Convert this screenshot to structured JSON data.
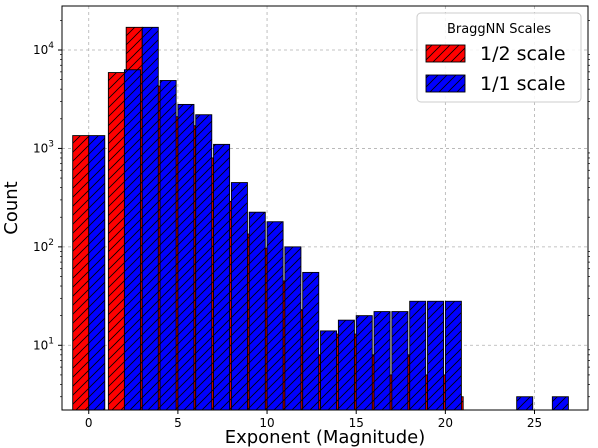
{
  "chart_data": {
    "type": "bar",
    "xlabel": "Exponent (Magnitude)",
    "ylabel": "Count",
    "yscale": "log",
    "xlim": [
      -1.5,
      28
    ],
    "ylim": [
      2.2,
      28000
    ],
    "xticks": [
      0,
      5,
      10,
      15,
      20,
      25
    ],
    "yticks": [
      {
        "value": 10,
        "base": "10",
        "exp": "1"
      },
      {
        "value": 100,
        "base": "10",
        "exp": "2"
      },
      {
        "value": 1000,
        "base": "10",
        "exp": "3"
      },
      {
        "value": 10000,
        "base": "10",
        "exp": "4"
      }
    ],
    "grid": true,
    "legend": {
      "title": "BraggNN Scales",
      "position": "top-right"
    },
    "series": [
      {
        "name": "1/2 scale",
        "color": "#ff0000",
        "x": [
          0,
          2,
          3,
          4,
          5,
          6,
          7,
          8,
          9,
          10,
          11,
          12,
          13,
          14,
          15,
          16,
          17,
          18,
          19,
          20,
          21
        ],
        "values": [
          1350,
          5900,
          17000,
          4300,
          2100,
          1700,
          800,
          290,
          135,
          97,
          45,
          23,
          8,
          13,
          13,
          8,
          5,
          8,
          5,
          5,
          3
        ]
      },
      {
        "name": "1/1 scale",
        "color": "#0000ff",
        "x": [
          0,
          2,
          3,
          4,
          5,
          6,
          7,
          8,
          9,
          10,
          11,
          12,
          13,
          14,
          15,
          16,
          17,
          18,
          19,
          20,
          24,
          26
        ],
        "values": [
          1350,
          6300,
          17000,
          4900,
          2800,
          2200,
          1100,
          450,
          225,
          180,
          100,
          55,
          14,
          18,
          20,
          22,
          22,
          28,
          28,
          28,
          3,
          3
        ]
      }
    ]
  }
}
